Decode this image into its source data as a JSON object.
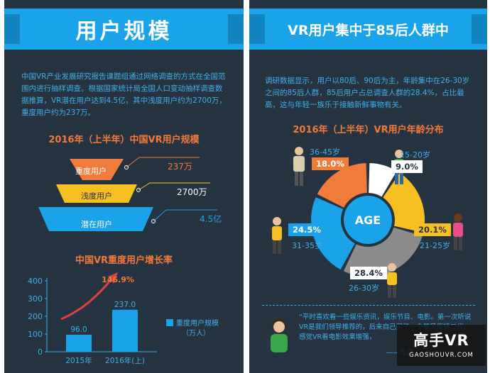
{
  "left": {
    "title": "用户规模",
    "paragraph": "中国VR产业发展研究报告课题组通过网络调查的方式在全国范围内进行抽样调查。根据国家统计局全国人口变动抽样调查数据推算，VR潜在用户达到4.5亿，其中浅度用户约为2700万，重度用户约为237万。",
    "pyramid_title": "2016年（上半年）中国VR用户规模",
    "pyramid": [
      {
        "label": "重度用户",
        "value_text": "237万",
        "color": "#f17b3a"
      },
      {
        "label": "浅度用户",
        "value_text": "2700万",
        "color": "#f6c022"
      },
      {
        "label": "潜在用户",
        "value_text": "4.5亿",
        "color": "#1aa3e8"
      }
    ],
    "bar_title": "中国VR重度用户增长率",
    "growth_label": "146.9%",
    "legend_label_1": "重度用户规模",
    "legend_label_2": "（万人）"
  },
  "right": {
    "title": "VR用户集中于85后人群中",
    "paragraph": "调研数据显示，用户以80后、90后为主，年龄集中在26-30岁之间的85后人群，85后用户占总调查人群的28.4%，占比最高，这与年轻一族乐于接触新鲜事物有关。",
    "donut_title": "2016年（上半年）VR用户年龄分布",
    "center_label": "AGE",
    "quote_text": "“平时喜欢看一些娱乐资讯，娱乐节目、电影。第一次听说VR是我们领导推荐的，后来自己买了一个暴风魔镜二代。感觉VR看电影效果增强，",
    "quote_sign": "——北京",
    "watermark_logo": "高手VR",
    "watermark_url": "GAOSHOUVR.COM"
  },
  "colors": {
    "panel": "#263340",
    "accent_blue": "#1aa3e8",
    "orange": "#f17b3a",
    "yellow": "#f6c022",
    "gray": "#8c8c8c",
    "white": "#ffffff"
  },
  "chart_data": [
    {
      "type": "bar",
      "title": "中国VR重度用户增长率",
      "categories": [
        "2015年",
        "2016年(上)"
      ],
      "series": [
        {
          "name": "重度用户规模（万人）",
          "values": [
            96.0,
            237.0
          ]
        }
      ],
      "value_labels": [
        "96.0",
        "237.0"
      ],
      "ylim": [
        0,
        400
      ],
      "yticks": [
        0,
        100,
        200,
        300,
        400
      ],
      "annotation": "146.9%",
      "grid": false,
      "legend": "right"
    },
    {
      "type": "pie",
      "title": "2016年（上半年）VR用户年龄分布",
      "categories": [
        "15-20岁",
        "21-25岁",
        "26-30岁",
        "31-35岁",
        "36-45岁"
      ],
      "values": [
        9.0,
        20.1,
        28.4,
        24.5,
        18.0
      ],
      "value_labels": [
        "9.0%",
        "20.1%",
        "28.4%",
        "24.5%",
        "18.0%"
      ],
      "colors": [
        "#ffffff",
        "#f6c022",
        "#8c8c8c",
        "#1aa3e8",
        "#f17b3a"
      ]
    }
  ]
}
